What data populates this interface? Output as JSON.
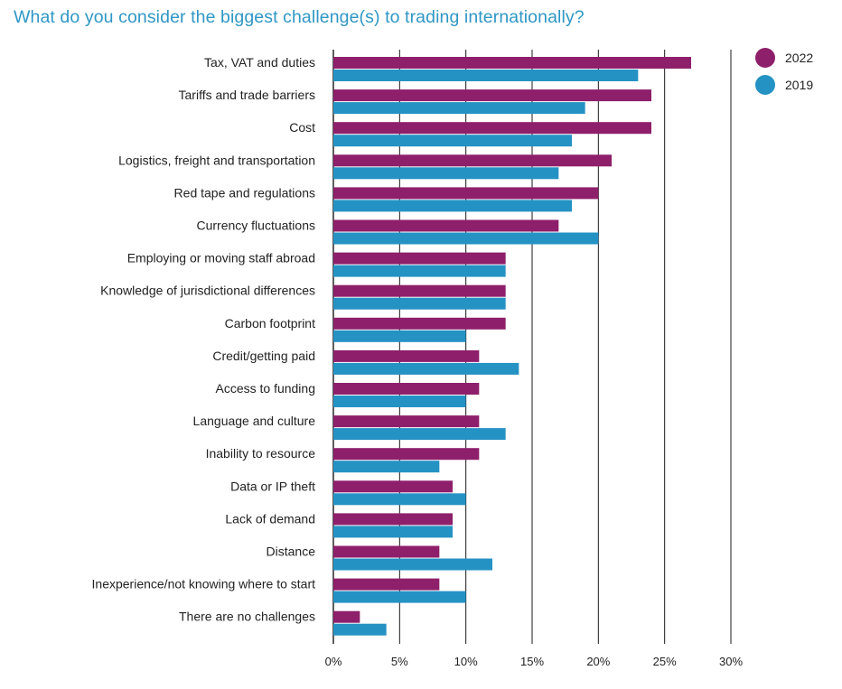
{
  "title": "What do you consider the biggest challenge(s) to trading internationally?",
  "colors": {
    "title": "#2f97c5",
    "series_2022": "#8e1f6b",
    "series_2019": "#2592c4",
    "grid": "#1a1a1a",
    "text": "#222222"
  },
  "chart_data": {
    "type": "bar",
    "orientation": "horizontal",
    "title": "What do you consider the biggest challenge(s) to trading internationally?",
    "xlabel": "",
    "ylabel": "",
    "xlim": [
      0,
      30
    ],
    "x_ticks": [
      "0%",
      "5%",
      "10%",
      "15%",
      "20%",
      "25%",
      "30%"
    ],
    "grid": true,
    "legend_position": "top-right",
    "categories": [
      "Tax, VAT and duties",
      "Tariffs and trade barriers",
      "Cost",
      "Logistics, freight and transportation",
      "Red tape and regulations",
      "Currency fluctuations",
      "Employing or moving staff abroad",
      "Knowledge of jurisdictional differences",
      "Carbon footprint",
      "Credit/getting paid",
      "Access to funding",
      "Language and culture",
      "Inability to resource",
      "Data or IP theft",
      "Lack of demand",
      "Distance",
      "Inexperience/not knowing where to start",
      "There are no challenges"
    ],
    "series": [
      {
        "name": "2022",
        "color": "#8e1f6b",
        "values": [
          27,
          24,
          24,
          21,
          20,
          17,
          13,
          13,
          13,
          11,
          11,
          11,
          11,
          9,
          9,
          8,
          8,
          2
        ]
      },
      {
        "name": "2019",
        "color": "#2592c4",
        "values": [
          23,
          19,
          18,
          17,
          18,
          20,
          13,
          13,
          10,
          14,
          10,
          13,
          8,
          10,
          9,
          12,
          10,
          4
        ]
      }
    ]
  }
}
